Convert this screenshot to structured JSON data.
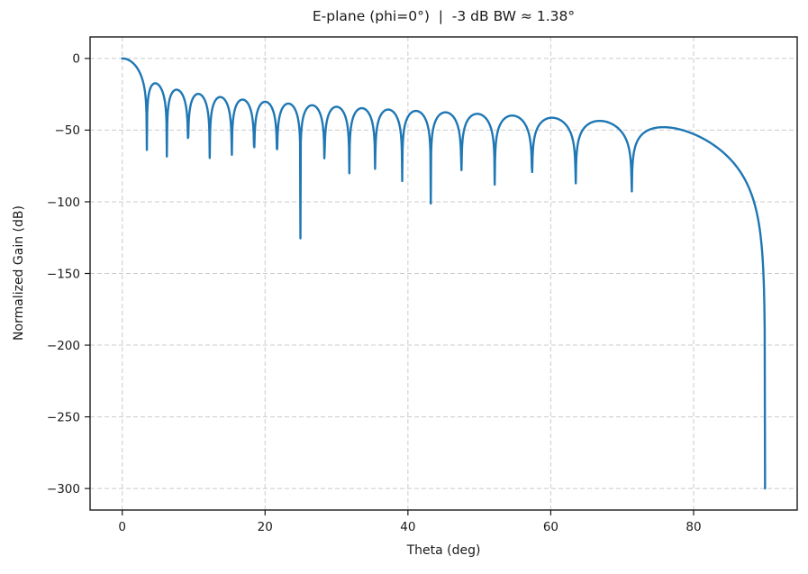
{
  "chart_data": {
    "type": "line",
    "title": "E-plane (phi=0°)  |  -3 dB BW ≈ 1.38°",
    "xlabel": "Theta (deg)",
    "ylabel": "Normalized Gain (dB)",
    "legend": "none",
    "line_color": "#1f77b4",
    "background": "#ffffff",
    "grid": {
      "visible": true,
      "style": "dashed",
      "color": "#cbcbcb"
    },
    "axes": {
      "xlim": [
        -4.5,
        94.5
      ],
      "ylim": [
        -315,
        15
      ],
      "x_ticks": [
        0,
        20,
        40,
        60,
        80
      ],
      "x_tick_labels": [
        "0",
        "20",
        "40",
        "60",
        "80"
      ],
      "y_ticks": [
        0,
        -50,
        -100,
        -150,
        -200,
        -250,
        -300
      ],
      "y_tick_labels": [
        "0",
        "−50",
        "−100",
        "−150",
        "−200",
        "−250",
        "−300"
      ]
    },
    "model": {
      "kind": "tapered-uniform-linear-array-factor",
      "elements": 38,
      "spacing_wavelengths": 0.5,
      "pedestal": 0.55,
      "element_factor": "cos(theta)",
      "scale": "20log10",
      "clip_db": -300,
      "theta_start_deg": 0,
      "theta_end_deg": 90,
      "theta_step_deg": 0.05
    },
    "key_points": {
      "main_lobe": {
        "theta_deg": 0,
        "gain_db": 0
      },
      "beamwidth_3db_deg": 1.38,
      "floor_db": -300,
      "end_theta_deg": 90,
      "nulls_deg": [
        3.4,
        6.3,
        9.1,
        12.3,
        15.3,
        18.4,
        21.6,
        24.8,
        28.1,
        31.7,
        35.3,
        39.0,
        42.9,
        47.5,
        52.1,
        57.4,
        63.5,
        71.3
      ],
      "sidelobe_peaks": [
        {
          "theta_deg": 4.7,
          "gain_db": -17
        },
        {
          "theta_deg": 7.6,
          "gain_db": -20
        },
        {
          "theta_deg": 10.6,
          "gain_db": -22.5
        },
        {
          "theta_deg": 13.7,
          "gain_db": -24.5
        },
        {
          "theta_deg": 16.9,
          "gain_db": -26
        },
        {
          "theta_deg": 20.0,
          "gain_db": -27.5
        },
        {
          "theta_deg": 23.2,
          "gain_db": -28.5
        },
        {
          "theta_deg": 26.5,
          "gain_db": -29.5
        },
        {
          "theta_deg": 30.0,
          "gain_db": -30.5
        },
        {
          "theta_deg": 33.5,
          "gain_db": -31.5
        },
        {
          "theta_deg": 37.1,
          "gain_db": -32.5
        },
        {
          "theta_deg": 41.0,
          "gain_db": -34
        },
        {
          "theta_deg": 45.2,
          "gain_db": -35.5
        },
        {
          "theta_deg": 49.8,
          "gain_db": -37
        },
        {
          "theta_deg": 54.7,
          "gain_db": -38.5
        },
        {
          "theta_deg": 60.4,
          "gain_db": -40.5
        },
        {
          "theta_deg": 67.3,
          "gain_db": -43
        },
        {
          "theta_deg": 76.0,
          "gain_db": -45.5
        }
      ]
    }
  }
}
